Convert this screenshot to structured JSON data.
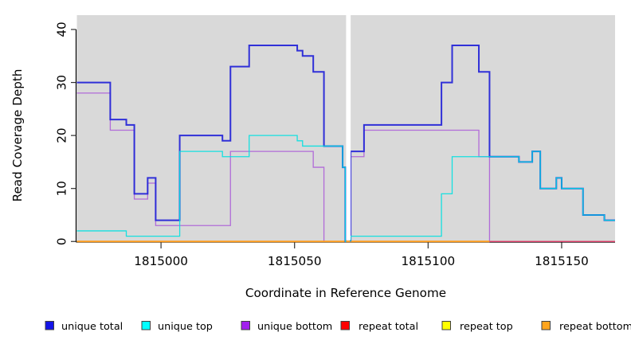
{
  "chart_data": {
    "type": "line",
    "subtype": "step-coverage-plot",
    "title": "",
    "xlabel": "Coordinate in Reference Genome",
    "ylabel": "Read Coverage Depth",
    "xlim": [
      1814968.5,
      1815170
    ],
    "ylim": [
      0,
      40
    ],
    "x_ticks": [
      {
        "value": 1815000,
        "label": "1815000"
      },
      {
        "value": 1815050,
        "label": "1815050"
      },
      {
        "value": 1815100,
        "label": "1815100"
      },
      {
        "value": 1815150,
        "label": "1815150"
      }
    ],
    "y_ticks": [
      {
        "value": 0,
        "label": "0"
      },
      {
        "value": 10,
        "label": "10"
      },
      {
        "value": 20,
        "label": "20"
      },
      {
        "value": 30,
        "label": "30"
      },
      {
        "value": 40,
        "label": "40"
      }
    ],
    "grid": false,
    "plot_background": "#d9d9d9",
    "gap_region": {
      "from": 1815069.3,
      "to": 1815071
    },
    "series": [
      {
        "name": "repeat top",
        "id": "repeat-top",
        "line_color": "#ffff00",
        "opacity": 1,
        "width": 1.2,
        "segments": [
          {
            "rise_from_zero": false,
            "points": [
              [
                1814968.5,
                0
              ]
            ],
            "end": 1815170
          }
        ]
      },
      {
        "name": "unique bottom",
        "id": "unique-bottom",
        "line_color": "#a958d8",
        "opacity": 0.85,
        "width": 1.3,
        "segments": [
          {
            "rise_from_zero": false,
            "points": [
              [
                1814968.5,
                28
              ],
              [
                1814981,
                21
              ],
              [
                1814990,
                8
              ],
              [
                1814995,
                11
              ],
              [
                1814998,
                3
              ],
              [
                1815026,
                17
              ],
              [
                1815057,
                14
              ],
              [
                1815061,
                0
              ]
            ],
            "end": 1815069.3
          },
          {
            "rise_from_zero": true,
            "points": [
              [
                1815071,
                16
              ],
              [
                1815076,
                21
              ],
              [
                1815119,
                16
              ],
              [
                1815123,
                0
              ]
            ],
            "end": 1815170
          }
        ]
      },
      {
        "name": "repeat total",
        "id": "repeat-total",
        "line_color": "#f20d3c",
        "opacity": 0.66,
        "width": 1.3,
        "segments": [
          {
            "rise_from_zero": false,
            "points": [
              [
                1814968.5,
                0
              ]
            ],
            "end": 1815170
          }
        ]
      },
      {
        "name": "repeat bottom",
        "id": "repeat-bottom",
        "line_color": "#ff9d1d",
        "opacity": 1,
        "width": 2,
        "segments": [
          {
            "rise_from_zero": false,
            "points": [
              [
                1814968.5,
                0
              ]
            ],
            "end": 1815123
          }
        ]
      },
      {
        "name": "unique total",
        "id": "unique-total",
        "line_color": "#2727d8",
        "opacity": 0.95,
        "width": 2,
        "segments": [
          {
            "rise_from_zero": false,
            "points": [
              [
                1814968.5,
                30
              ],
              [
                1814981,
                23
              ],
              [
                1814987,
                22
              ],
              [
                1814990,
                9
              ],
              [
                1814995,
                12
              ],
              [
                1814998,
                4
              ],
              [
                1815007,
                20
              ],
              [
                1815023,
                19
              ],
              [
                1815026,
                33
              ],
              [
                1815033,
                37
              ],
              [
                1815051,
                36
              ],
              [
                1815053,
                35
              ],
              [
                1815057,
                32
              ],
              [
                1815061,
                18
              ],
              [
                1815068,
                14
              ],
              [
                1815069,
                0
              ]
            ],
            "end": 1815069.3
          },
          {
            "rise_from_zero": true,
            "points": [
              [
                1815071,
                17
              ],
              [
                1815076,
                22
              ],
              [
                1815105,
                30
              ],
              [
                1815109,
                37
              ],
              [
                1815119,
                32
              ],
              [
                1815123,
                16
              ],
              [
                1815134,
                15
              ],
              [
                1815139,
                17
              ],
              [
                1815142,
                10
              ],
              [
                1815148,
                12
              ],
              [
                1815150,
                10
              ],
              [
                1815158,
                5
              ],
              [
                1815166,
                4
              ]
            ],
            "end": 1815170
          }
        ]
      },
      {
        "name": "unique top",
        "id": "unique-top",
        "line_color": "#00e0e0",
        "opacity": 0.9,
        "width": 1.3,
        "segments": [
          {
            "rise_from_zero": false,
            "points": [
              [
                1814968.5,
                2
              ],
              [
                1814987,
                1
              ],
              [
                1815007,
                17
              ],
              [
                1815023,
                16
              ],
              [
                1815033,
                20
              ],
              [
                1815051,
                19
              ],
              [
                1815053,
                18
              ],
              [
                1815068,
                14
              ],
              [
                1815069,
                0
              ]
            ],
            "end": 1815069.3
          },
          {
            "rise_from_zero": true,
            "points": [
              [
                1815071,
                1
              ],
              [
                1815105,
                9
              ],
              [
                1815109,
                16
              ],
              [
                1815134,
                15
              ],
              [
                1815139,
                17
              ],
              [
                1815142,
                10
              ],
              [
                1815148,
                12
              ],
              [
                1815150,
                10
              ],
              [
                1815158,
                5
              ],
              [
                1815166,
                4
              ]
            ],
            "end": 1815170
          }
        ]
      }
    ],
    "legend": {
      "position": "bottom",
      "items": [
        {
          "label": "unique total",
          "swatch_color": "#1414e8"
        },
        {
          "label": "unique top",
          "swatch_color": "#00ffff"
        },
        {
          "label": "unique bottom",
          "swatch_color": "#a21fef"
        },
        {
          "label": "repeat total",
          "swatch_color": "#fe0000"
        },
        {
          "label": "repeat top",
          "swatch_color": "#ffff00"
        },
        {
          "label": "repeat bottom",
          "swatch_color": "#ffa51e"
        }
      ]
    },
    "axis_color": "#000000",
    "tick_color": "#303030",
    "text_color": "#000000"
  }
}
